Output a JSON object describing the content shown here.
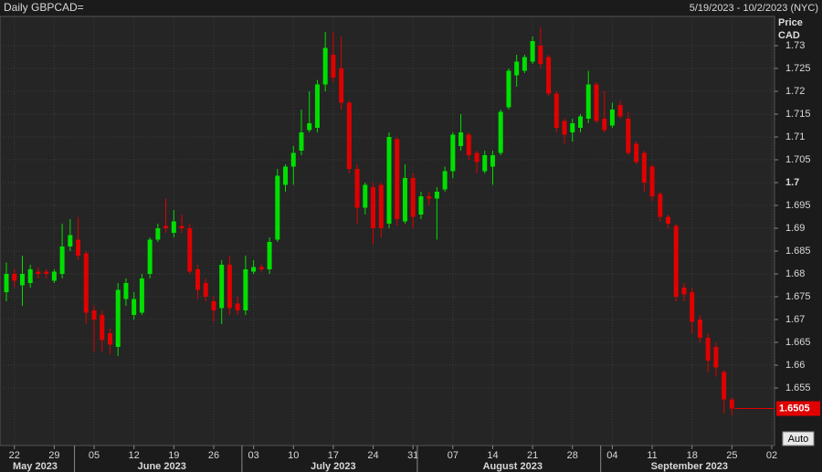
{
  "chart_data": {
    "type": "candlestick",
    "title": "Daily GBPCAD=",
    "subtitle": "5/19/2023 - 10/2/2023 (NYC)",
    "y_label": "Price CAD",
    "button": "Auto",
    "up_color": "#00e000",
    "down_color": "#e00000",
    "grid": true,
    "x": [
      "2023-05-19",
      "2023-05-22",
      "2023-05-23",
      "2023-05-24",
      "2023-05-25",
      "2023-05-26",
      "2023-05-29",
      "2023-05-30",
      "2023-05-31",
      "2023-06-01",
      "2023-06-02",
      "2023-06-05",
      "2023-06-06",
      "2023-06-07",
      "2023-06-08",
      "2023-06-09",
      "2023-06-12",
      "2023-06-13",
      "2023-06-14",
      "2023-06-15",
      "2023-06-16",
      "2023-06-19",
      "2023-06-20",
      "2023-06-21",
      "2023-06-22",
      "2023-06-23",
      "2023-06-26",
      "2023-06-27",
      "2023-06-28",
      "2023-06-29",
      "2023-06-30",
      "2023-07-03",
      "2023-07-04",
      "2023-07-05",
      "2023-07-06",
      "2023-07-07",
      "2023-07-10",
      "2023-07-11",
      "2023-07-12",
      "2023-07-13",
      "2023-07-14",
      "2023-07-17",
      "2023-07-18",
      "2023-07-19",
      "2023-07-20",
      "2023-07-21",
      "2023-07-24",
      "2023-07-25",
      "2023-07-26",
      "2023-07-27",
      "2023-07-28",
      "2023-07-31",
      "2023-08-01",
      "2023-08-02",
      "2023-08-03",
      "2023-08-04",
      "2023-08-07",
      "2023-08-08",
      "2023-08-09",
      "2023-08-10",
      "2023-08-11",
      "2023-08-14",
      "2023-08-15",
      "2023-08-16",
      "2023-08-17",
      "2023-08-18",
      "2023-08-21",
      "2023-08-22",
      "2023-08-23",
      "2023-08-24",
      "2023-08-25",
      "2023-08-28",
      "2023-08-29",
      "2023-08-30",
      "2023-08-31",
      "2023-09-01",
      "2023-09-04",
      "2023-09-05",
      "2023-09-06",
      "2023-09-07",
      "2023-09-08",
      "2023-09-11",
      "2023-09-12",
      "2023-09-13",
      "2023-09-14",
      "2023-09-15",
      "2023-09-18",
      "2023-09-19",
      "2023-09-20",
      "2023-09-21",
      "2023-09-22",
      "2023-09-25"
    ],
    "open": [
      1.676,
      1.68,
      1.6775,
      1.678,
      1.6805,
      1.6805,
      1.6785,
      1.68,
      1.686,
      1.6875,
      1.6845,
      1.672,
      1.671,
      1.667,
      1.664,
      1.6745,
      1.671,
      1.6715,
      1.68,
      1.6875,
      1.6905,
      1.689,
      1.6905,
      1.69,
      1.681,
      1.678,
      1.674,
      1.6725,
      1.682,
      1.6735,
      1.672,
      1.6805,
      1.6815,
      1.681,
      1.6875,
      1.6995,
      1.7035,
      1.707,
      1.7115,
      1.712,
      1.7215,
      1.728,
      1.725,
      1.7175,
      1.703,
      1.6945,
      1.699,
      1.6995,
      1.691,
      1.7095,
      1.6915,
      1.701,
      1.693,
      1.697,
      1.6965,
      1.6985,
      1.7025,
      1.708,
      1.7105,
      1.7065,
      1.7025,
      1.7035,
      1.7065,
      1.7165,
      1.7235,
      1.7245,
      1.7265,
      1.73,
      1.7275,
      1.7195,
      1.7135,
      1.711,
      1.712,
      1.714,
      1.7215,
      1.714,
      1.7125,
      1.717,
      1.714,
      1.7085,
      1.7065,
      1.7035,
      1.6975,
      1.6925,
      1.6905,
      1.677,
      1.676,
      1.67,
      1.666,
      1.664,
      1.6585,
      1.6525
    ],
    "high": [
      1.6825,
      1.681,
      1.684,
      1.682,
      1.6815,
      1.681,
      1.681,
      1.691,
      1.692,
      1.6925,
      1.685,
      1.673,
      1.672,
      1.668,
      1.678,
      1.679,
      1.676,
      1.68,
      1.688,
      1.691,
      1.6965,
      1.694,
      1.693,
      1.691,
      1.682,
      1.679,
      1.675,
      1.683,
      1.684,
      1.675,
      1.684,
      1.683,
      1.682,
      1.688,
      1.703,
      1.704,
      1.708,
      1.716,
      1.72,
      1.7225,
      1.733,
      1.733,
      1.732,
      1.718,
      1.704,
      1.7,
      1.7,
      1.7,
      1.711,
      1.71,
      1.704,
      1.702,
      1.698,
      1.698,
      1.699,
      1.7035,
      1.711,
      1.715,
      1.711,
      1.707,
      1.707,
      1.707,
      1.716,
      1.725,
      1.728,
      1.728,
      1.732,
      1.734,
      1.728,
      1.72,
      1.714,
      1.714,
      1.715,
      1.7245,
      1.722,
      1.72,
      1.7175,
      1.718,
      1.7155,
      1.709,
      1.707,
      1.704,
      1.698,
      1.693,
      1.691,
      1.678,
      1.677,
      1.671,
      1.667,
      1.665,
      1.659,
      1.653
    ],
    "low": [
      1.674,
      1.677,
      1.673,
      1.677,
      1.679,
      1.679,
      1.678,
      1.679,
      1.685,
      1.683,
      1.669,
      1.663,
      1.663,
      1.6625,
      1.662,
      1.673,
      1.67,
      1.671,
      1.679,
      1.687,
      1.689,
      1.688,
      1.689,
      1.68,
      1.6745,
      1.674,
      1.6695,
      1.669,
      1.671,
      1.671,
      1.671,
      1.68,
      1.6805,
      1.68,
      1.687,
      1.698,
      1.6995,
      1.706,
      1.711,
      1.711,
      1.72,
      1.722,
      1.716,
      1.702,
      1.691,
      1.693,
      1.6865,
      1.688,
      1.69,
      1.6905,
      1.691,
      1.69,
      1.692,
      1.695,
      1.6875,
      1.698,
      1.701,
      1.707,
      1.705,
      1.702,
      1.702,
      1.6995,
      1.706,
      1.716,
      1.721,
      1.724,
      1.726,
      1.725,
      1.719,
      1.711,
      1.7085,
      1.709,
      1.711,
      1.713,
      1.713,
      1.711,
      1.712,
      1.714,
      1.706,
      1.704,
      1.698,
      1.696,
      1.6915,
      1.69,
      1.674,
      1.674,
      1.667,
      1.665,
      1.6585,
      1.6575,
      1.6495,
      1.649
    ],
    "close": [
      1.68,
      1.6785,
      1.68,
      1.681,
      1.68,
      1.68,
      1.6805,
      1.686,
      1.6885,
      1.684,
      1.6715,
      1.67,
      1.6655,
      1.6645,
      1.6765,
      1.678,
      1.6745,
      1.679,
      1.6875,
      1.69,
      1.69,
      1.6915,
      1.69,
      1.6805,
      1.6765,
      1.675,
      1.672,
      1.682,
      1.6725,
      1.672,
      1.681,
      1.6815,
      1.681,
      1.687,
      1.7015,
      1.7035,
      1.7065,
      1.711,
      1.713,
      1.7215,
      1.7295,
      1.723,
      1.7175,
      1.703,
      1.6945,
      1.6995,
      1.69,
      1.69,
      1.71,
      1.692,
      1.701,
      1.6925,
      1.697,
      1.6965,
      1.698,
      1.7025,
      1.7105,
      1.711,
      1.706,
      1.7045,
      1.706,
      1.706,
      1.7155,
      1.7245,
      1.7265,
      1.7275,
      1.731,
      1.726,
      1.7195,
      1.712,
      1.7105,
      1.713,
      1.7145,
      1.7215,
      1.7135,
      1.7115,
      1.716,
      1.7145,
      1.7065,
      1.7045,
      1.7,
      1.697,
      1.6925,
      1.691,
      1.675,
      1.6755,
      1.6695,
      1.666,
      1.661,
      1.6595,
      1.6525,
      1.6505
    ],
    "xlim": [
      "2023-05-19",
      "2023-10-02"
    ],
    "xticks": [
      {
        "value": "2023-05-22",
        "label": "22"
      },
      {
        "value": "2023-05-29",
        "label": "29"
      },
      {
        "value": "2023-06-05",
        "label": "05"
      },
      {
        "value": "2023-06-12",
        "label": "12"
      },
      {
        "value": "2023-06-19",
        "label": "19"
      },
      {
        "value": "2023-06-26",
        "label": "26"
      },
      {
        "value": "2023-07-03",
        "label": "03"
      },
      {
        "value": "2023-07-10",
        "label": "10"
      },
      {
        "value": "2023-07-17",
        "label": "17"
      },
      {
        "value": "2023-07-24",
        "label": "24"
      },
      {
        "value": "2023-07-31",
        "label": "31"
      },
      {
        "value": "2023-08-07",
        "label": "07"
      },
      {
        "value": "2023-08-14",
        "label": "14"
      },
      {
        "value": "2023-08-21",
        "label": "21"
      },
      {
        "value": "2023-08-28",
        "label": "28"
      },
      {
        "value": "2023-09-04",
        "label": "04"
      },
      {
        "value": "2023-09-11",
        "label": "11"
      },
      {
        "value": "2023-09-18",
        "label": "18"
      },
      {
        "value": "2023-09-25",
        "label": "25"
      },
      {
        "value": "2023-10-02",
        "label": "02"
      }
    ],
    "months": [
      {
        "value": "2023-05-19",
        "label": "May 2023"
      },
      {
        "value": "2023-06-01",
        "label": "June 2023"
      },
      {
        "value": "2023-07-01",
        "label": "July 2023"
      },
      {
        "value": "2023-08-01",
        "label": "August 2023"
      },
      {
        "value": "2023-09-01",
        "label": "September 2023"
      }
    ],
    "ylim": [
      1.6424,
      1.7364
    ],
    "yticks": [
      1.655,
      1.66,
      1.665,
      1.67,
      1.675,
      1.68,
      1.685,
      1.69,
      1.695,
      1.7,
      1.705,
      1.71,
      1.715,
      1.72,
      1.725,
      1.73
    ]
  }
}
